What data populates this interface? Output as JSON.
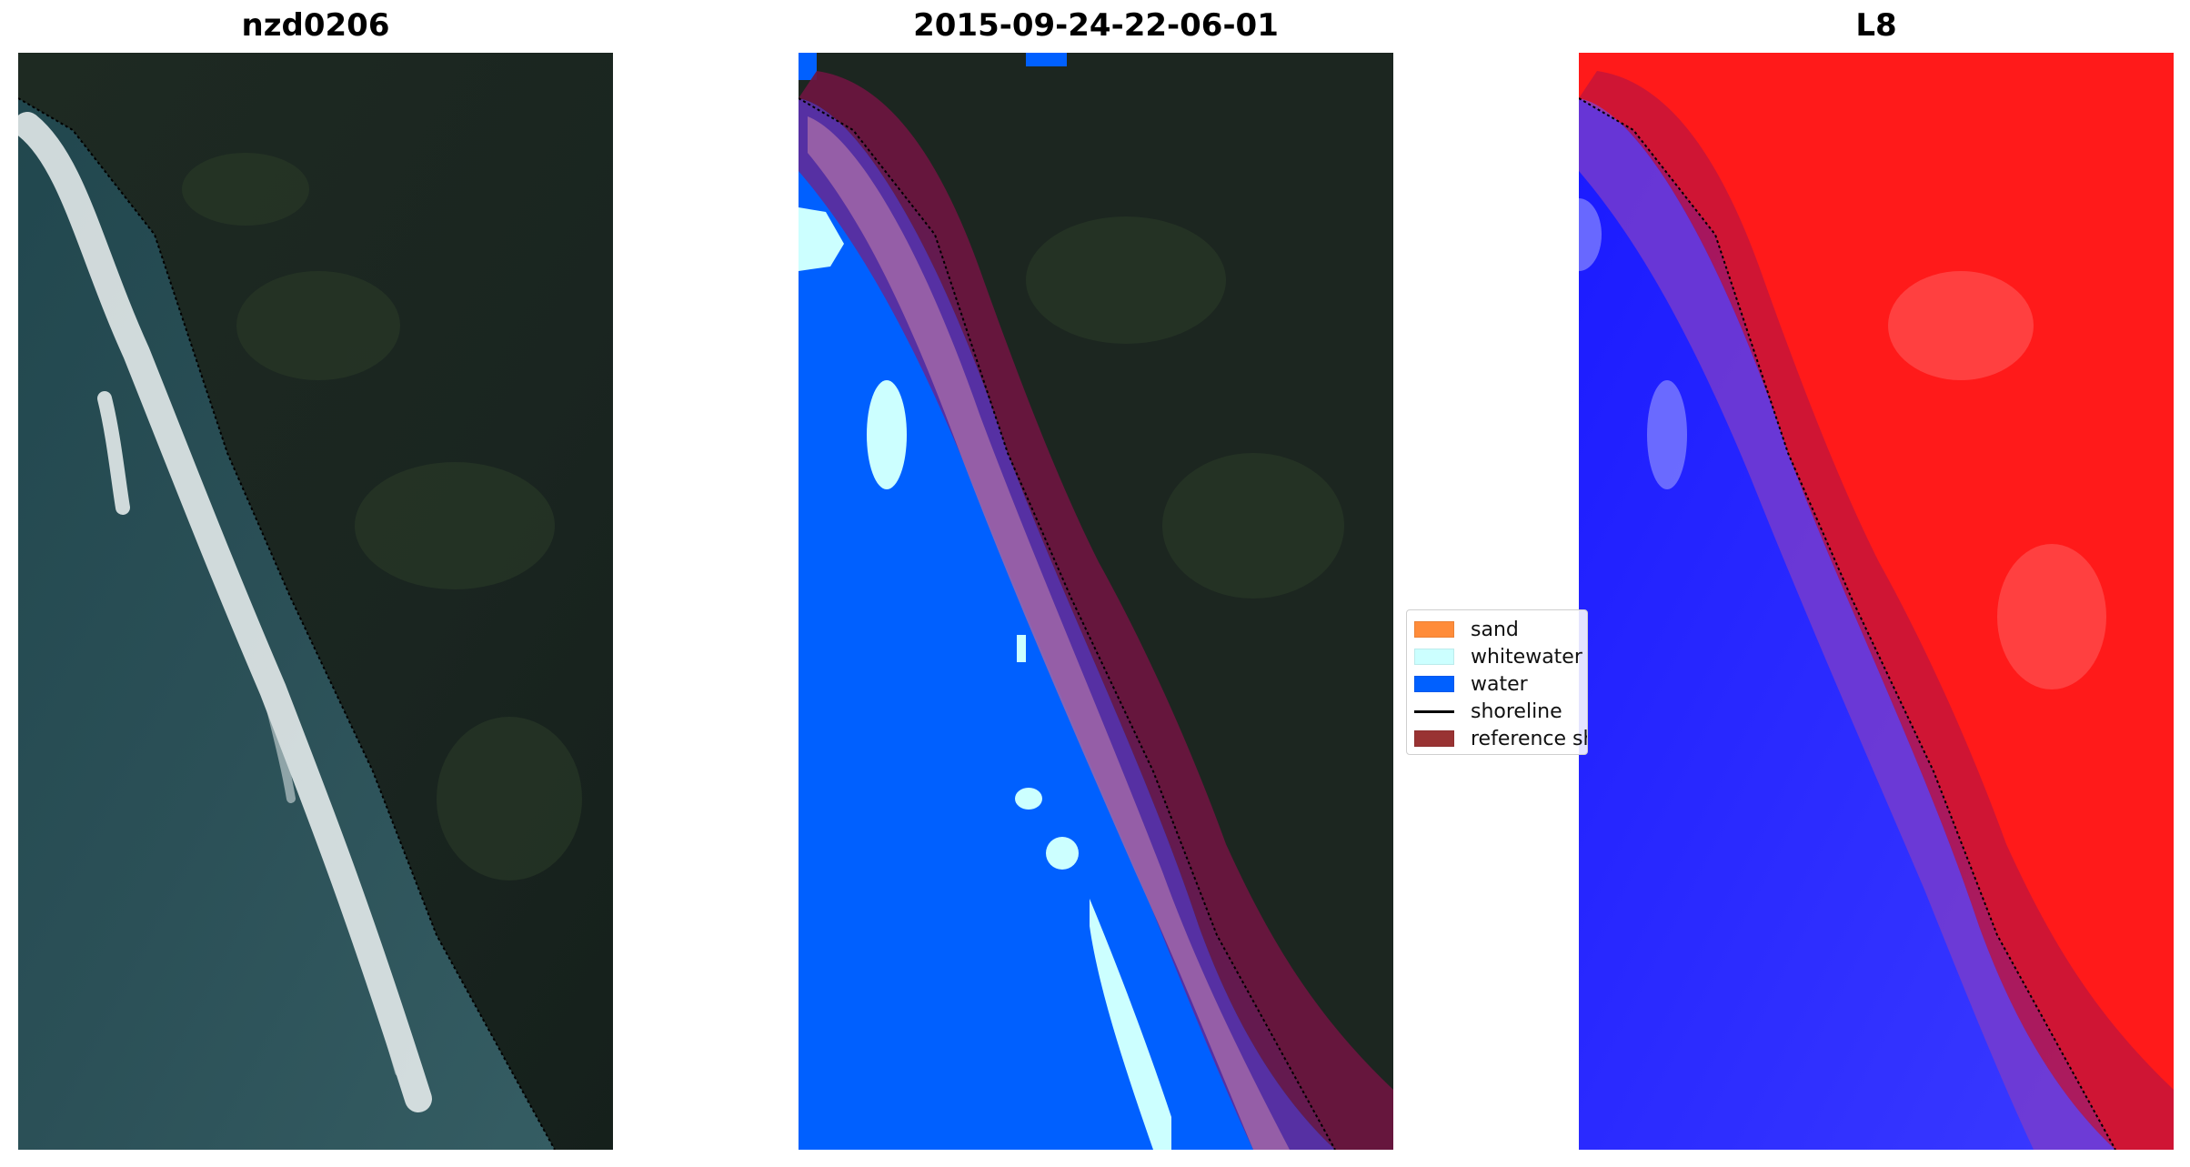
{
  "panels": [
    {
      "title": "nzd0206"
    },
    {
      "title": "2015-09-24-22-06-01"
    },
    {
      "title": "L8"
    }
  ],
  "legend": [
    {
      "label": "sand",
      "type": "patch",
      "color": "#ff8c3a"
    },
    {
      "label": "whitewater",
      "type": "patch",
      "color": "#ccffff"
    },
    {
      "label": "water",
      "type": "patch",
      "color": "#0060ff"
    },
    {
      "label": "shoreline",
      "type": "line",
      "color": "#000000"
    },
    {
      "label": "reference shoreline buffer",
      "type": "patch",
      "color": "#993333"
    }
  ]
}
